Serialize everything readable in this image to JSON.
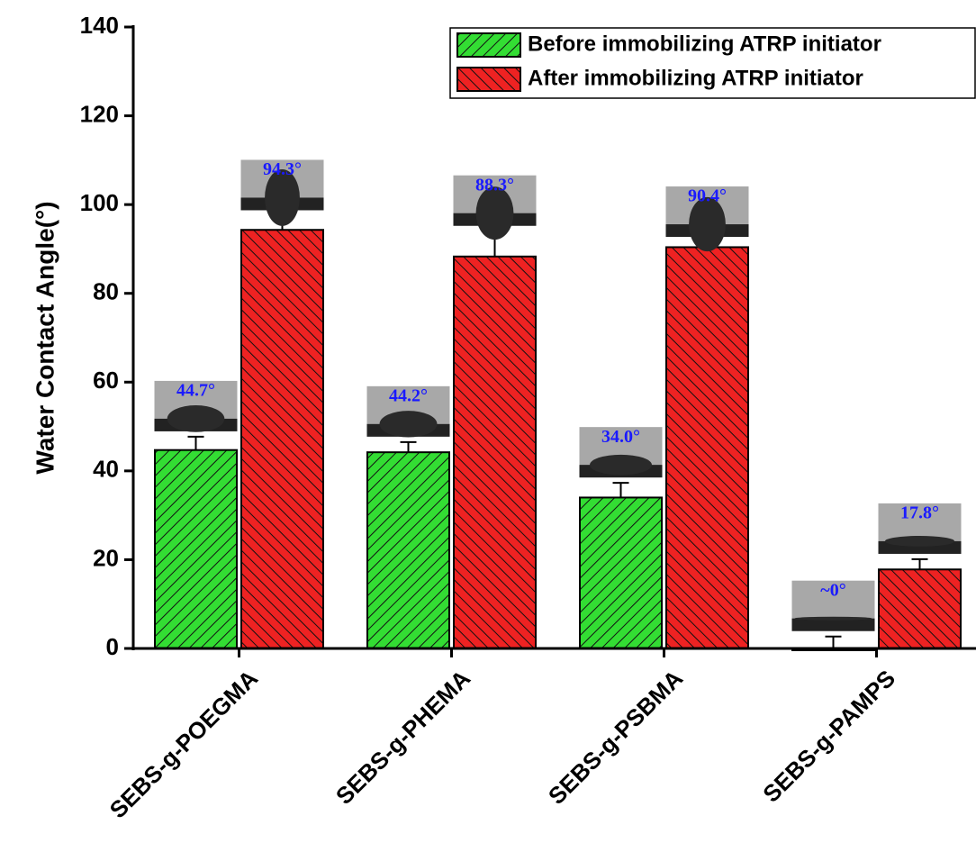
{
  "chart_data": {
    "type": "bar",
    "y_label": "Water Contact Angle(°)",
    "categories": [
      "SEBS-g-POEGMA",
      "SEBS-g-PHEMA",
      "SEBS-g-PSBMA",
      "SEBS-g-PAMPS"
    ],
    "series": [
      {
        "name": "Before immobilizing ATRP initiator",
        "color": "#33dd33",
        "values": [
          44.7,
          44.2,
          34.0,
          0
        ],
        "errors": [
          3.0,
          2.3,
          3.3,
          2.7
        ],
        "value_labels": [
          "44.7°",
          "44.2°",
          "34.0°",
          "~0°"
        ]
      },
      {
        "name": "After immobilizing ATRP initiator",
        "color": "#ee2222",
        "values": [
          94.3,
          88.3,
          90.4,
          17.8
        ],
        "errors": [
          3.2,
          5.7,
          1.1,
          2.3
        ],
        "value_labels": [
          "94.3°",
          "88.3°",
          "90.4°",
          "17.8°"
        ]
      }
    ],
    "ylim": [
      0,
      140
    ],
    "yticks": [
      0,
      20,
      40,
      60,
      80,
      100,
      120,
      140
    ],
    "legend": "top-right",
    "value_label_color": "#1a1aff"
  }
}
